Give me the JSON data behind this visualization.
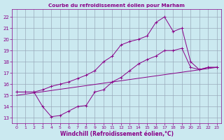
{
  "title": "Courbe du refroidissement éolien pour Marham",
  "xlabel": "Windchill (Refroidissement éolien,°C)",
  "bg_color": "#cbe9f0",
  "line_color": "#880088",
  "grid_color": "#99aabb",
  "xlim": [
    -0.5,
    23.5
  ],
  "ylim": [
    12.5,
    22.7
  ],
  "yticks": [
    13,
    14,
    15,
    16,
    17,
    18,
    19,
    20,
    21,
    22
  ],
  "xticks": [
    0,
    1,
    2,
    3,
    4,
    5,
    6,
    7,
    8,
    9,
    10,
    11,
    12,
    13,
    14,
    15,
    16,
    17,
    18,
    19,
    20,
    21,
    22,
    23
  ],
  "line1_x": [
    0,
    1,
    2,
    3,
    4,
    5,
    6,
    7,
    8,
    9,
    10,
    11,
    12,
    13,
    14,
    15,
    16,
    17,
    18,
    19,
    20,
    21,
    22,
    23
  ],
  "line1_y": [
    15.3,
    15.3,
    15.3,
    15.5,
    15.8,
    16.0,
    16.2,
    16.5,
    16.8,
    17.2,
    18.0,
    18.5,
    19.5,
    19.8,
    20.0,
    20.3,
    21.5,
    22.0,
    20.7,
    21.0,
    18.0,
    17.3,
    17.5,
    17.5
  ],
  "line2_x": [
    0,
    1,
    2,
    3,
    4,
    5,
    6,
    7,
    8,
    9,
    10,
    11,
    12,
    13,
    14,
    15,
    16,
    17,
    18,
    19,
    20,
    21,
    22,
    23
  ],
  "line2_y": [
    15.3,
    15.3,
    15.3,
    14.0,
    13.1,
    13.2,
    13.6,
    14.0,
    14.1,
    15.3,
    15.5,
    16.2,
    16.6,
    17.2,
    17.8,
    18.2,
    18.5,
    19.0,
    19.0,
    19.2,
    17.5,
    17.3,
    17.5,
    17.5
  ],
  "line3_x": [
    0,
    23
  ],
  "line3_y": [
    15.0,
    17.5
  ]
}
